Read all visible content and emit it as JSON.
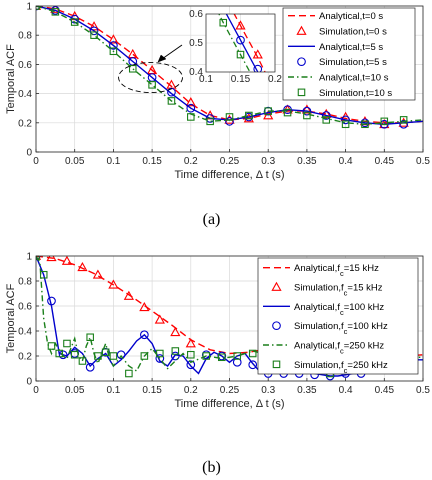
{
  "chart_data": [
    {
      "type": "line",
      "caption": "(a)",
      "xlabel": "Time difference, Δ t (s)",
      "ylabel": "Temporal ACF",
      "xlim": [
        0,
        0.5
      ],
      "ylim": [
        0,
        1
      ],
      "xticks": [
        "0",
        "0.05",
        "0.1",
        "0.15",
        "0.2",
        "0.25",
        "0.3",
        "0.35",
        "0.4",
        "0.45",
        "0.5"
      ],
      "yticks": [
        "0",
        "0.2",
        "0.4",
        "0.6",
        "0.8",
        "1"
      ],
      "grid": true,
      "legend_position": "top-right",
      "colors": {
        "red": "#ff0000",
        "blue": "#0000cc",
        "green": "#1a7f1a"
      },
      "series": [
        {
          "name": "Analytical,t=0 s",
          "kind": "line",
          "style": "dashed",
          "color": "red",
          "x": [
            0,
            0.025,
            0.05,
            0.075,
            0.1,
            0.125,
            0.15,
            0.175,
            0.2,
            0.225,
            0.25,
            0.275,
            0.3,
            0.325,
            0.35,
            0.375,
            0.4,
            0.425,
            0.45,
            0.475,
            0.5
          ],
          "y": [
            1,
            0.98,
            0.93,
            0.86,
            0.77,
            0.67,
            0.56,
            0.45,
            0.33,
            0.25,
            0.22,
            0.23,
            0.26,
            0.28,
            0.28,
            0.26,
            0.23,
            0.21,
            0.2,
            0.2,
            0.21
          ]
        },
        {
          "name": "Simulation,t=0 s",
          "kind": "marker",
          "marker": "triangle",
          "color": "red",
          "x": [
            0,
            0.025,
            0.05,
            0.075,
            0.1,
            0.125,
            0.15,
            0.175,
            0.2,
            0.225,
            0.25,
            0.275,
            0.3,
            0.325,
            0.35,
            0.375,
            0.4,
            0.425,
            0.45,
            0.475
          ],
          "y": [
            1,
            0.98,
            0.93,
            0.86,
            0.77,
            0.67,
            0.56,
            0.46,
            0.34,
            0.25,
            0.22,
            0.23,
            0.25,
            0.29,
            0.29,
            0.26,
            0.24,
            0.21,
            0.19,
            0.2
          ]
        },
        {
          "name": "Analytical,t=5 s",
          "kind": "line",
          "style": "solid",
          "color": "blue",
          "x": [
            0,
            0.025,
            0.05,
            0.075,
            0.1,
            0.125,
            0.15,
            0.175,
            0.2,
            0.225,
            0.25,
            0.275,
            0.3,
            0.325,
            0.35,
            0.375,
            0.4,
            0.425,
            0.45,
            0.475,
            0.5
          ],
          "y": [
            1,
            0.97,
            0.91,
            0.83,
            0.73,
            0.62,
            0.51,
            0.4,
            0.3,
            0.23,
            0.22,
            0.24,
            0.27,
            0.29,
            0.28,
            0.25,
            0.22,
            0.2,
            0.19,
            0.2,
            0.21
          ]
        },
        {
          "name": "Simulation,t=5 s",
          "kind": "marker",
          "marker": "circle",
          "color": "blue",
          "x": [
            0,
            0.025,
            0.05,
            0.075,
            0.1,
            0.125,
            0.15,
            0.175,
            0.2,
            0.225,
            0.25,
            0.275,
            0.3,
            0.325,
            0.35,
            0.375,
            0.4,
            0.425,
            0.45,
            0.475
          ],
          "y": [
            1,
            0.97,
            0.91,
            0.83,
            0.73,
            0.62,
            0.51,
            0.41,
            0.3,
            0.23,
            0.21,
            0.24,
            0.28,
            0.29,
            0.28,
            0.25,
            0.22,
            0.2,
            0.19,
            0.19
          ]
        },
        {
          "name": "Analytical,t=10 s",
          "kind": "line",
          "style": "dashdot",
          "color": "green",
          "x": [
            0,
            0.025,
            0.05,
            0.075,
            0.1,
            0.125,
            0.15,
            0.175,
            0.2,
            0.225,
            0.25,
            0.275,
            0.3,
            0.325,
            0.35,
            0.375,
            0.4,
            0.425,
            0.45,
            0.475,
            0.5
          ],
          "y": [
            1,
            0.96,
            0.89,
            0.8,
            0.69,
            0.57,
            0.46,
            0.35,
            0.26,
            0.21,
            0.22,
            0.25,
            0.28,
            0.28,
            0.26,
            0.23,
            0.2,
            0.19,
            0.2,
            0.21,
            0.22
          ]
        },
        {
          "name": "Simulation,t=10 s",
          "kind": "marker",
          "marker": "square",
          "color": "green",
          "x": [
            0,
            0.025,
            0.05,
            0.075,
            0.1,
            0.125,
            0.15,
            0.175,
            0.2,
            0.225,
            0.25,
            0.275,
            0.3,
            0.325,
            0.35,
            0.375,
            0.4,
            0.425,
            0.45,
            0.475
          ],
          "y": [
            1,
            0.96,
            0.89,
            0.8,
            0.69,
            0.57,
            0.46,
            0.35,
            0.24,
            0.21,
            0.24,
            0.25,
            0.28,
            0.27,
            0.25,
            0.22,
            0.19,
            0.19,
            0.21,
            0.22
          ]
        }
      ],
      "inset": {
        "xlim": [
          0.1,
          0.2
        ],
        "ylim": [
          0.4,
          0.6
        ],
        "xticks": [
          "0.1",
          "0.15",
          "0.2"
        ],
        "yticks": [
          "0.4",
          "0.5",
          "0.6"
        ]
      }
    },
    {
      "type": "line",
      "caption": "(b)",
      "xlabel": "Time difference, Δ t (s)",
      "ylabel": "Temporal ACF",
      "xlim": [
        0,
        0.5
      ],
      "ylim": [
        0,
        1
      ],
      "xticks": [
        "0",
        "0.05",
        "0.1",
        "0.15",
        "0.2",
        "0.25",
        "0.3",
        "0.35",
        "0.4",
        "0.45",
        "0.5"
      ],
      "yticks": [
        "0",
        "0.2",
        "0.4",
        "0.6",
        "0.8",
        "1"
      ],
      "grid": true,
      "legend_position": "top-right",
      "series": [
        {
          "name": "Analytical,f_c=15 kHz",
          "kind": "line",
          "style": "dashed",
          "color": "red",
          "x": [
            0,
            0.025,
            0.05,
            0.075,
            0.1,
            0.125,
            0.15,
            0.175,
            0.2,
            0.225,
            0.25,
            0.275,
            0.3,
            0.325,
            0.35,
            0.375,
            0.4,
            0.425,
            0.45,
            0.475,
            0.5
          ],
          "y": [
            1,
            0.98,
            0.93,
            0.86,
            0.77,
            0.67,
            0.56,
            0.45,
            0.33,
            0.25,
            0.22,
            0.23,
            0.26,
            0.28,
            0.28,
            0.26,
            0.23,
            0.21,
            0.2,
            0.2,
            0.21
          ]
        },
        {
          "name": "Simulation,f_c=15 kHz",
          "kind": "marker",
          "marker": "triangle",
          "color": "red",
          "x": [
            0,
            0.02,
            0.04,
            0.06,
            0.08,
            0.1,
            0.12,
            0.14,
            0.16,
            0.18,
            0.2
          ],
          "y": [
            1,
            0.99,
            0.96,
            0.91,
            0.85,
            0.77,
            0.68,
            0.59,
            0.49,
            0.39,
            0.3
          ]
        },
        {
          "name": "Analytical,f_c=100 kHz",
          "kind": "line",
          "style": "solid",
          "color": "blue",
          "x": [
            0,
            0.01,
            0.02,
            0.03,
            0.04,
            0.05,
            0.06,
            0.07,
            0.08,
            0.09,
            0.1,
            0.11,
            0.12,
            0.13,
            0.14,
            0.15,
            0.16,
            0.17,
            0.18,
            0.19,
            0.2,
            0.21,
            0.22,
            0.23,
            0.24,
            0.25,
            0.26,
            0.27,
            0.28,
            0.29,
            0.3,
            0.31,
            0.32,
            0.33,
            0.34,
            0.35,
            0.36,
            0.37,
            0.38,
            0.39,
            0.4,
            0.41,
            0.42,
            0.43,
            0.44,
            0.45,
            0.46,
            0.47,
            0.48,
            0.49,
            0.5
          ],
          "y": [
            1,
            0.85,
            0.6,
            0.22,
            0.2,
            0.27,
            0.22,
            0.12,
            0.18,
            0.22,
            0.12,
            0.17,
            0.24,
            0.32,
            0.37,
            0.3,
            0.16,
            0.12,
            0.21,
            0.2,
            0.12,
            0.06,
            0.18,
            0.23,
            0.2,
            0.15,
            0.2,
            0.22,
            0.14,
            0.07,
            0.06,
            0.08,
            0.07,
            0.06,
            0.06,
            0.07,
            0.06,
            0.05,
            0.04,
            0.04,
            0.05,
            0.06,
            0.06,
            0.07,
            0.07,
            0.11,
            0.15,
            0.18,
            0.18,
            0.17,
            0.17
          ]
        },
        {
          "name": "Simulation,f_c=100 kHz",
          "kind": "marker",
          "marker": "circle",
          "color": "blue",
          "x": [
            0,
            0.02,
            0.035,
            0.05,
            0.07,
            0.09,
            0.11,
            0.14,
            0.16,
            0.18,
            0.2,
            0.22,
            0.24,
            0.26,
            0.28,
            0.3,
            0.32,
            0.34,
            0.36,
            0.38,
            0.4,
            0.42,
            0.44,
            0.46,
            0.48
          ],
          "y": [
            1,
            0.64,
            0.21,
            0.22,
            0.11,
            0.23,
            0.21,
            0.37,
            0.18,
            0.2,
            0.13,
            0.21,
            0.2,
            0.15,
            0.13,
            0.06,
            0.06,
            0.06,
            0.05,
            0.04,
            0.06,
            0.06,
            0.11,
            0.13,
            0.16
          ]
        },
        {
          "name": "Analytical,f_c=250 kHz",
          "kind": "line",
          "style": "dashdot",
          "color": "green",
          "x": [
            0,
            0.005,
            0.01,
            0.015,
            0.02,
            0.025,
            0.03,
            0.035,
            0.04,
            0.045,
            0.05,
            0.055,
            0.06,
            0.065,
            0.07,
            0.075,
            0.08,
            0.085,
            0.09,
            0.095,
            0.1,
            0.11,
            0.12,
            0.13,
            0.14,
            0.15,
            0.16,
            0.17,
            0.18,
            0.19,
            0.2,
            0.22,
            0.24,
            0.26,
            0.28,
            0.3,
            0.32,
            0.34,
            0.36,
            0.38,
            0.4,
            0.42,
            0.44,
            0.46,
            0.48,
            0.5
          ],
          "y": [
            1,
            0.95,
            0.5,
            0.3,
            0.22,
            0.3,
            0.25,
            0.2,
            0.18,
            0.26,
            0.34,
            0.2,
            0.16,
            0.28,
            0.35,
            0.22,
            0.14,
            0.22,
            0.3,
            0.18,
            0.12,
            0.2,
            0.12,
            0.08,
            0.2,
            0.26,
            0.18,
            0.1,
            0.16,
            0.22,
            0.15,
            0.2,
            0.18,
            0.2,
            0.24,
            0.21,
            0.17,
            0.15,
            0.1,
            0.08,
            0.12,
            0.18,
            0.2,
            0.2,
            0.19,
            0.19
          ]
        },
        {
          "name": "Simulation,f_c=250 kHz",
          "kind": "marker",
          "marker": "square",
          "color": "green",
          "x": [
            0,
            0.01,
            0.02,
            0.03,
            0.04,
            0.05,
            0.06,
            0.07,
            0.08,
            0.09,
            0.1,
            0.12,
            0.14,
            0.16,
            0.18,
            0.2,
            0.22,
            0.24,
            0.26,
            0.28,
            0.3,
            0.32,
            0.34,
            0.36,
            0.38,
            0.4,
            0.42,
            0.44,
            0.46
          ],
          "y": [
            1,
            0.85,
            0.28,
            0.22,
            0.3,
            0.21,
            0.16,
            0.35,
            0.2,
            0.23,
            0.2,
            0.06,
            0.2,
            0.22,
            0.24,
            0.21,
            0.2,
            0.19,
            0.2,
            0.22,
            0.2,
            0.21,
            0.18,
            0.12,
            0.06,
            0.12,
            0.2,
            0.21,
            0.18
          ]
        }
      ]
    }
  ]
}
